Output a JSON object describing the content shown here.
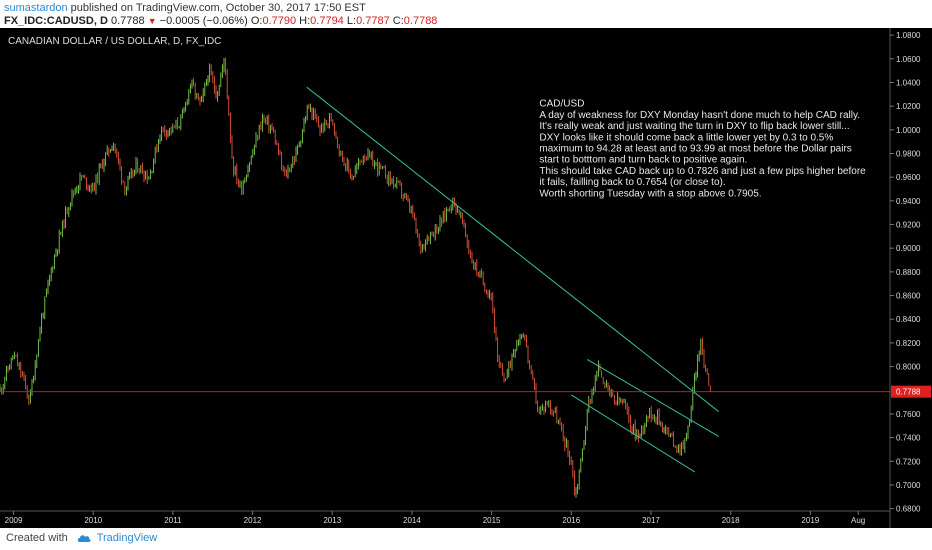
{
  "header": {
    "user": "sumastardon",
    "published_text": "published on TradingView.com, October 30, 2017 17:50 EST",
    "symbol": "FX_IDC:CADUSD, D",
    "last": "0.7788",
    "change": "−0.0005 (−0.06%)",
    "o_label": "O:",
    "o_value": "0.7790",
    "h_label": "H:",
    "h_value": "0.7794",
    "l_label": "L:",
    "l_value": "0.7787",
    "c_label": "C:",
    "c_value": "0.7788"
  },
  "colors": {
    "background": "#000000",
    "up": "#7fd34e",
    "down": "#e8583d",
    "trendline": "#35c09a",
    "price_line": "#e02020",
    "axis_text": "#dddddd"
  },
  "chart_data": {
    "type": "candlestick",
    "title": "CANADIAN DOLLAR / US DOLLAR, D, FX_IDC",
    "x_tick_labels": [
      "2009",
      "2010",
      "2011",
      "2012",
      "2013",
      "2014",
      "2015",
      "2016",
      "2017",
      "2018",
      "2019",
      "Aug"
    ],
    "xlim": [
      2008.83,
      2020.0
    ],
    "ylim": [
      0.678,
      1.086
    ],
    "y_ticks": [
      "1.0800",
      "1.0600",
      "1.0400",
      "1.0200",
      "1.0000",
      "0.9800",
      "0.9600",
      "0.9400",
      "0.9200",
      "0.9000",
      "0.8800",
      "0.8600",
      "0.8400",
      "0.8200",
      "0.8000",
      "0.7600",
      "0.7400",
      "0.7200",
      "0.7000",
      "0.6800"
    ],
    "last_price": 0.7788,
    "last_price_label": "0.7788",
    "price_path": [
      [
        2008.83,
        0.78
      ],
      [
        2009.0,
        0.81
      ],
      [
        2009.12,
        0.79
      ],
      [
        2009.2,
        0.77
      ],
      [
        2009.35,
        0.84
      ],
      [
        2009.5,
        0.89
      ],
      [
        2009.7,
        0.94
      ],
      [
        2009.85,
        0.96
      ],
      [
        2010.0,
        0.95
      ],
      [
        2010.1,
        0.97
      ],
      [
        2010.25,
        0.99
      ],
      [
        2010.4,
        0.95
      ],
      [
        2010.55,
        0.97
      ],
      [
        2010.7,
        0.96
      ],
      [
        2010.85,
        1.0
      ],
      [
        2011.0,
        1.0
      ],
      [
        2011.12,
        1.01
      ],
      [
        2011.22,
        1.04
      ],
      [
        2011.35,
        1.02
      ],
      [
        2011.45,
        1.05
      ],
      [
        2011.55,
        1.03
      ],
      [
        2011.65,
        1.06
      ],
      [
        2011.75,
        0.97
      ],
      [
        2011.85,
        0.95
      ],
      [
        2012.0,
        0.98
      ],
      [
        2012.12,
        1.01
      ],
      [
        2012.25,
        1.0
      ],
      [
        2012.4,
        0.96
      ],
      [
        2012.55,
        0.98
      ],
      [
        2012.7,
        1.02
      ],
      [
        2012.85,
        1.0
      ],
      [
        2013.0,
        1.01
      ],
      [
        2013.1,
        0.98
      ],
      [
        2013.25,
        0.96
      ],
      [
        2013.4,
        0.98
      ],
      [
        2013.55,
        0.97
      ],
      [
        2013.7,
        0.96
      ],
      [
        2013.85,
        0.95
      ],
      [
        2014.0,
        0.93
      ],
      [
        2014.1,
        0.9
      ],
      [
        2014.2,
        0.91
      ],
      [
        2014.35,
        0.92
      ],
      [
        2014.5,
        0.94
      ],
      [
        2014.6,
        0.93
      ],
      [
        2014.75,
        0.89
      ],
      [
        2014.9,
        0.87
      ],
      [
        2015.0,
        0.86
      ],
      [
        2015.08,
        0.8
      ],
      [
        2015.18,
        0.79
      ],
      [
        2015.3,
        0.82
      ],
      [
        2015.4,
        0.83
      ],
      [
        2015.5,
        0.79
      ],
      [
        2015.6,
        0.76
      ],
      [
        2015.7,
        0.77
      ],
      [
        2015.8,
        0.76
      ],
      [
        2015.9,
        0.74
      ],
      [
        2016.0,
        0.72
      ],
      [
        2016.05,
        0.69
      ],
      [
        2016.12,
        0.72
      ],
      [
        2016.22,
        0.77
      ],
      [
        2016.35,
        0.8
      ],
      [
        2016.45,
        0.78
      ],
      [
        2016.55,
        0.77
      ],
      [
        2016.65,
        0.77
      ],
      [
        2016.75,
        0.75
      ],
      [
        2016.85,
        0.74
      ],
      [
        2016.95,
        0.76
      ],
      [
        2017.05,
        0.76
      ],
      [
        2017.15,
        0.75
      ],
      [
        2017.25,
        0.74
      ],
      [
        2017.35,
        0.73
      ],
      [
        2017.45,
        0.74
      ],
      [
        2017.55,
        0.79
      ],
      [
        2017.62,
        0.82
      ],
      [
        2017.68,
        0.8
      ],
      [
        2017.76,
        0.7788
      ]
    ],
    "trendlines": [
      {
        "start": [
          2012.68,
          1.036
        ],
        "end": [
          2017.85,
          0.762
        ]
      },
      {
        "start": [
          2016.2,
          0.806
        ],
        "end": [
          2017.85,
          0.741
        ]
      },
      {
        "start": [
          2016.0,
          0.776
        ],
        "end": [
          2017.55,
          0.711
        ]
      }
    ],
    "annotation": {
      "x": 2015.6,
      "y": 1.0195,
      "lines": [
        "CAD/USD",
        "A day of weakness for DXY Monday hasn't done much to help CAD rally.",
        "It's really weak and just waiting the turn in DXY to flip back lower still...",
        "DXY looks like it should come back a little lower yet by 0.3 to 0.5%",
        "maximum to 94.28 at least and to 93.99 at most before the Dollar pairs",
        "start to botttom and turn back to positive again.",
        "This should take CAD back up to 0.7826 and just a few pips higher before",
        "it fails, failling back to 0.7654 (or close to).",
        "Worth shorting Tuesday with a stop above 0.7905."
      ]
    }
  },
  "footer": {
    "created_with": "Created with",
    "brand": "TradingView"
  }
}
